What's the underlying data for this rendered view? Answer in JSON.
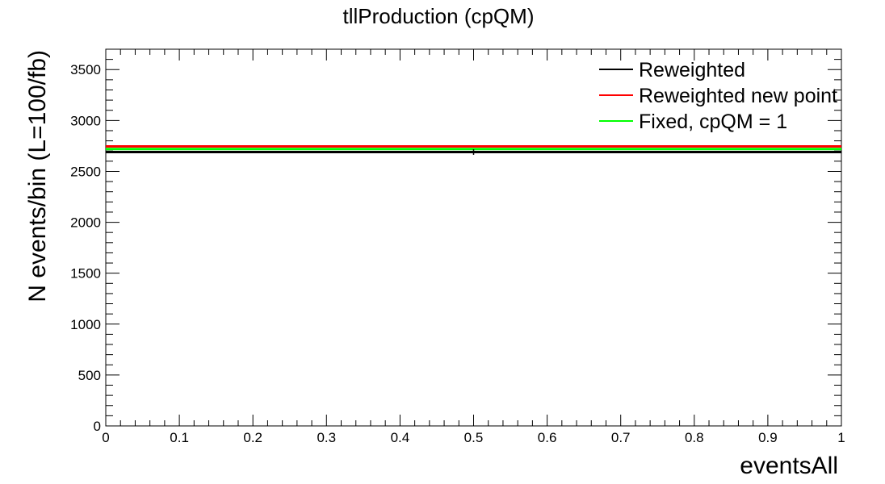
{
  "chart_data": {
    "type": "line",
    "title": "tllProduction (cpQM)",
    "xlabel": "eventsAll",
    "ylabel": "N events/bin (L=100/fb)",
    "xlim": [
      0,
      1
    ],
    "ylim": [
      0,
      3700
    ],
    "x_ticks": [
      "0",
      "0.1",
      "0.2",
      "0.3",
      "0.4",
      "0.5",
      "0.6",
      "0.7",
      "0.8",
      "0.9",
      "1"
    ],
    "y_ticks": [
      "0",
      "500",
      "1000",
      "1500",
      "2000",
      "2500",
      "3000",
      "3500"
    ],
    "grid": false,
    "legend_position": "top-right",
    "series": [
      {
        "name": "Reweighted",
        "color": "#000000",
        "x": [
          0,
          1
        ],
        "y": 2690,
        "error": 55
      },
      {
        "name": "Reweighted new point",
        "color": "#ff0000",
        "x": [
          0,
          1
        ],
        "y": 2745
      },
      {
        "name": "Fixed, cpQM = 1",
        "color": "#00ff00",
        "x": [
          0,
          1
        ],
        "y": 2720
      }
    ]
  }
}
